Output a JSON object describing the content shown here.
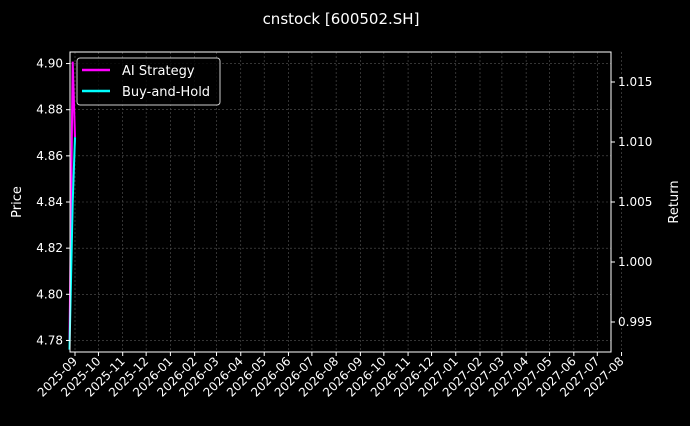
{
  "chart_data": {
    "type": "line",
    "title": "cnstock [600502.SH]",
    "ylabel_left": "Price",
    "ylabel_right": "Return",
    "xlabel": "",
    "x_ticks": [
      "2025-09",
      "2025-10",
      "2025-11",
      "2025-12",
      "2026-01",
      "2026-02",
      "2026-03",
      "2026-04",
      "2026-05",
      "2026-06",
      "2026-07",
      "2026-08",
      "2026-09",
      "2026-10",
      "2026-11",
      "2026-12",
      "2027-01",
      "2027-02",
      "2027-03",
      "2027-04",
      "2027-05",
      "2027-06",
      "2027-07",
      "2027-08"
    ],
    "y_left_ticks": [
      "4.78",
      "4.80",
      "4.82",
      "4.84",
      "4.86",
      "4.88",
      "4.90"
    ],
    "y_right_ticks": [
      "0.995",
      "1.000",
      "1.005",
      "1.010",
      "1.015"
    ],
    "ylim_left": [
      4.775,
      4.905
    ],
    "ylim_right": [
      0.9925,
      1.0175
    ],
    "grid": true,
    "legend_position": "top-left",
    "x": [
      "2025-08-25",
      "2025-08-29",
      "2025-09-01"
    ],
    "price": {
      "color": "#ff3030",
      "values": [
        4.78,
        4.84,
        4.867
      ]
    },
    "series": [
      {
        "name": "AI Strategy",
        "color": "#ff00ff",
        "values": [
          0.9935,
          1.0167,
          1.0104
        ],
        "axis": "right"
      },
      {
        "name": "Buy-and-Hold",
        "color": "#00ffff",
        "values": [
          0.9927,
          1.005,
          1.0104
        ],
        "axis": "right"
      }
    ]
  }
}
